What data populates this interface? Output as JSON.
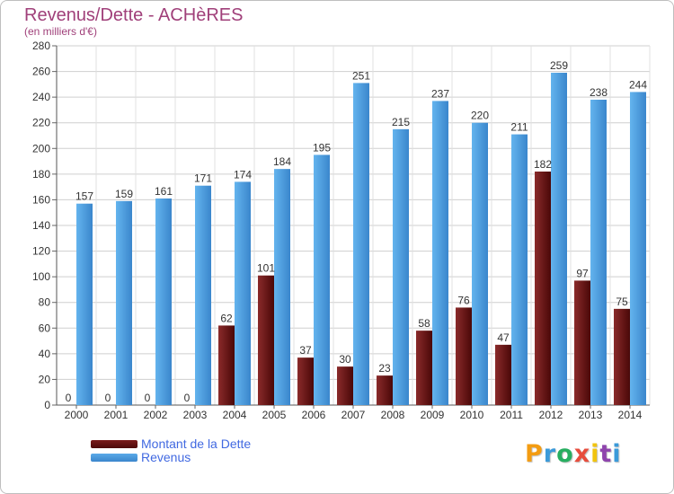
{
  "header": {
    "title": "Revenus/Dette - ACHèRES",
    "subtitle": "(en milliers d'€)"
  },
  "legend": {
    "dette_label": "Montant de la Dette",
    "revenus_label": "Revenus"
  },
  "logo": {
    "letters": [
      "P",
      "r",
      "o",
      "x",
      "i",
      "t",
      "i"
    ],
    "colors": [
      "#f39c12",
      "#3b9ad9",
      "#27ae60",
      "#e74c3c",
      "#f1c40f",
      "#8e44ad",
      "#3b9ad9"
    ]
  },
  "chart_data": {
    "type": "bar",
    "categories": [
      "2000",
      "2001",
      "2002",
      "2003",
      "2004",
      "2005",
      "2006",
      "2007",
      "2008",
      "2009",
      "2010",
      "2011",
      "2012",
      "2013",
      "2014"
    ],
    "series": [
      {
        "name": "Montant de la Dette",
        "color": "#7a1a1a",
        "values": [
          0,
          0,
          0,
          0,
          62,
          101,
          37,
          30,
          23,
          58,
          76,
          47,
          182,
          97,
          75
        ]
      },
      {
        "name": "Revenus",
        "color": "#4a9de0",
        "values": [
          157,
          159,
          161,
          171,
          174,
          184,
          195,
          251,
          215,
          237,
          220,
          211,
          259,
          238,
          244
        ]
      }
    ],
    "ylim": [
      0,
      280
    ],
    "yticks": [
      0,
      20,
      40,
      60,
      80,
      100,
      120,
      140,
      160,
      180,
      200,
      220,
      240,
      260,
      280
    ],
    "grid": true
  }
}
